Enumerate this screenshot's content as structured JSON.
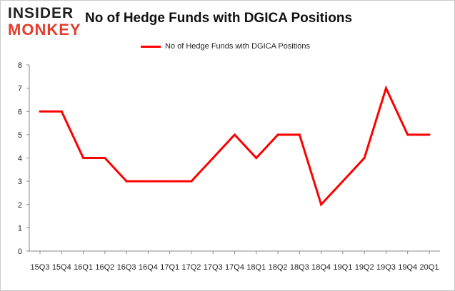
{
  "brand": {
    "logo_top": "INSIDER",
    "logo_bottom": "MONKEY",
    "logo_color": "#e53c2b"
  },
  "chart_data": {
    "type": "line",
    "title": "No of Hedge Funds with DGICA Positions",
    "xlabel": "",
    "ylabel": "",
    "categories": [
      "15Q3",
      "15Q4",
      "16Q1",
      "16Q2",
      "16Q3",
      "16Q4",
      "17Q1",
      "17Q2",
      "17Q3",
      "17Q4",
      "18Q1",
      "18Q2",
      "18Q3",
      "18Q4",
      "19Q1",
      "19Q2",
      "19Q3",
      "19Q4",
      "20Q1"
    ],
    "series": [
      {
        "name": "No of Hedge Funds with DGICA Positions",
        "color": "#ff0000",
        "values": [
          6,
          6,
          4,
          4,
          3,
          3,
          3,
          3,
          4,
          5,
          4,
          5,
          5,
          2,
          3,
          4,
          7,
          5,
          5
        ]
      }
    ],
    "ylim": [
      0,
      8
    ],
    "yticks": [
      0,
      1,
      2,
      3,
      4,
      5,
      6,
      7,
      8
    ],
    "legend_position": "top-center",
    "grid": false
  }
}
